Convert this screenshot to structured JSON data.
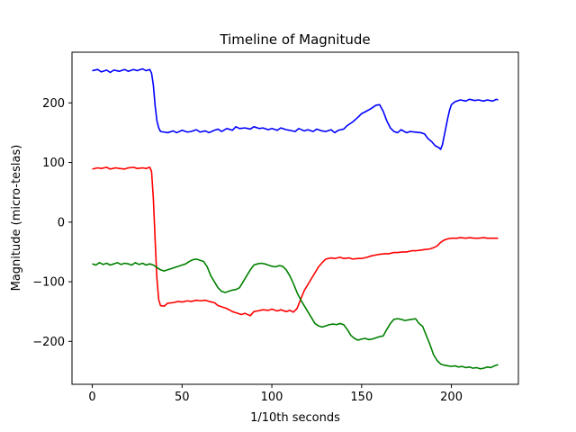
{
  "chart_data": {
    "type": "line",
    "title": "Timeline of Magnitude",
    "xlabel": "1/10th seconds",
    "ylabel": "Magnitude (micro-teslas)",
    "xlim": [
      -11.3,
      237.3
    ],
    "ylim": [
      -272,
      285
    ],
    "xticks": [
      0,
      50,
      100,
      150,
      200
    ],
    "yticks": [
      -200,
      -100,
      0,
      100,
      200
    ],
    "grid": false,
    "colors": {
      "blue": "#0000ff",
      "red": "#ff0000",
      "green": "#008000"
    },
    "series": [
      {
        "color": "#0000ff",
        "points": [
          [
            0,
            254
          ],
          [
            3,
            256
          ],
          [
            5,
            252
          ],
          [
            8,
            255
          ],
          [
            10,
            251
          ],
          [
            12,
            255
          ],
          [
            15,
            253
          ],
          [
            18,
            256
          ],
          [
            20,
            253
          ],
          [
            23,
            256
          ],
          [
            25,
            254
          ],
          [
            28,
            257
          ],
          [
            30,
            254
          ],
          [
            32,
            256
          ],
          [
            33,
            250
          ],
          [
            34,
            230
          ],
          [
            35,
            195
          ],
          [
            36,
            170
          ],
          [
            37,
            158
          ],
          [
            38,
            152
          ],
          [
            40,
            151
          ],
          [
            42,
            150
          ],
          [
            45,
            153
          ],
          [
            47,
            150
          ],
          [
            50,
            154
          ],
          [
            53,
            151
          ],
          [
            55,
            152
          ],
          [
            58,
            155
          ],
          [
            60,
            151
          ],
          [
            63,
            153
          ],
          [
            65,
            150
          ],
          [
            68,
            154
          ],
          [
            70,
            156
          ],
          [
            72,
            152
          ],
          [
            75,
            157
          ],
          [
            78,
            154
          ],
          [
            80,
            160
          ],
          [
            82,
            157
          ],
          [
            85,
            158
          ],
          [
            88,
            156
          ],
          [
            90,
            160
          ],
          [
            93,
            157
          ],
          [
            95,
            158
          ],
          [
            98,
            155
          ],
          [
            100,
            157
          ],
          [
            103,
            154
          ],
          [
            105,
            158
          ],
          [
            108,
            155
          ],
          [
            110,
            154
          ],
          [
            113,
            152
          ],
          [
            115,
            157
          ],
          [
            118,
            153
          ],
          [
            120,
            155
          ],
          [
            123,
            152
          ],
          [
            125,
            156
          ],
          [
            128,
            153
          ],
          [
            130,
            152
          ],
          [
            133,
            155
          ],
          [
            135,
            150
          ],
          [
            137,
            154
          ],
          [
            140,
            156
          ],
          [
            142,
            162
          ],
          [
            145,
            168
          ],
          [
            148,
            176
          ],
          [
            150,
            182
          ],
          [
            152,
            185
          ],
          [
            155,
            190
          ],
          [
            158,
            196
          ],
          [
            160,
            197
          ],
          [
            162,
            186
          ],
          [
            164,
            170
          ],
          [
            166,
            158
          ],
          [
            168,
            152
          ],
          [
            170,
            150
          ],
          [
            172,
            155
          ],
          [
            175,
            150
          ],
          [
            177,
            152
          ],
          [
            180,
            151
          ],
          [
            183,
            150
          ],
          [
            185,
            148
          ],
          [
            187,
            140
          ],
          [
            189,
            135
          ],
          [
            191,
            128
          ],
          [
            193,
            125
          ],
          [
            194,
            122
          ],
          [
            195,
            130
          ],
          [
            196,
            145
          ],
          [
            197,
            160
          ],
          [
            198,
            175
          ],
          [
            199,
            188
          ],
          [
            200,
            197
          ],
          [
            202,
            202
          ],
          [
            205,
            205
          ],
          [
            208,
            203
          ],
          [
            210,
            206
          ],
          [
            213,
            204
          ],
          [
            215,
            205
          ],
          [
            218,
            203
          ],
          [
            220,
            205
          ],
          [
            223,
            203
          ],
          [
            225,
            206
          ],
          [
            226,
            205
          ]
        ]
      },
      {
        "color": "#ff0000",
        "points": [
          [
            0,
            89
          ],
          [
            3,
            91
          ],
          [
            5,
            90
          ],
          [
            8,
            92
          ],
          [
            10,
            89
          ],
          [
            13,
            91
          ],
          [
            15,
            90
          ],
          [
            18,
            89
          ],
          [
            20,
            91
          ],
          [
            23,
            92
          ],
          [
            25,
            90
          ],
          [
            28,
            91
          ],
          [
            30,
            90
          ],
          [
            32,
            92
          ],
          [
            33,
            85
          ],
          [
            34,
            40
          ],
          [
            35,
            -30
          ],
          [
            36,
            -95
          ],
          [
            37,
            -130
          ],
          [
            38,
            -140
          ],
          [
            40,
            -141
          ],
          [
            42,
            -136
          ],
          [
            45,
            -135
          ],
          [
            48,
            -133
          ],
          [
            50,
            -134
          ],
          [
            53,
            -132
          ],
          [
            55,
            -133
          ],
          [
            58,
            -131
          ],
          [
            60,
            -132
          ],
          [
            63,
            -131
          ],
          [
            65,
            -133
          ],
          [
            68,
            -135
          ],
          [
            70,
            -140
          ],
          [
            72,
            -142
          ],
          [
            75,
            -145
          ],
          [
            78,
            -150
          ],
          [
            80,
            -152
          ],
          [
            83,
            -155
          ],
          [
            85,
            -153
          ],
          [
            88,
            -157
          ],
          [
            90,
            -150
          ],
          [
            92,
            -149
          ],
          [
            95,
            -147
          ],
          [
            98,
            -148
          ],
          [
            100,
            -146
          ],
          [
            103,
            -149
          ],
          [
            105,
            -147
          ],
          [
            108,
            -150
          ],
          [
            110,
            -148
          ],
          [
            112,
            -151
          ],
          [
            114,
            -145
          ],
          [
            116,
            -130
          ],
          [
            118,
            -115
          ],
          [
            120,
            -105
          ],
          [
            122,
            -95
          ],
          [
            124,
            -85
          ],
          [
            126,
            -75
          ],
          [
            128,
            -68
          ],
          [
            130,
            -62
          ],
          [
            133,
            -60
          ],
          [
            135,
            -61
          ],
          [
            138,
            -59
          ],
          [
            140,
            -61
          ],
          [
            143,
            -60
          ],
          [
            145,
            -62
          ],
          [
            148,
            -61
          ],
          [
            150,
            -61
          ],
          [
            153,
            -59
          ],
          [
            155,
            -57
          ],
          [
            158,
            -55
          ],
          [
            160,
            -54
          ],
          [
            163,
            -53
          ],
          [
            165,
            -53
          ],
          [
            168,
            -51
          ],
          [
            170,
            -51
          ],
          [
            173,
            -50
          ],
          [
            175,
            -50
          ],
          [
            178,
            -48
          ],
          [
            180,
            -48
          ],
          [
            183,
            -47
          ],
          [
            185,
            -46
          ],
          [
            188,
            -45
          ],
          [
            190,
            -43
          ],
          [
            192,
            -40
          ],
          [
            194,
            -34
          ],
          [
            196,
            -30
          ],
          [
            198,
            -28
          ],
          [
            200,
            -27
          ],
          [
            203,
            -27
          ],
          [
            205,
            -26
          ],
          [
            208,
            -27
          ],
          [
            210,
            -26
          ],
          [
            213,
            -27
          ],
          [
            215,
            -27
          ],
          [
            218,
            -26
          ],
          [
            220,
            -27
          ],
          [
            223,
            -27
          ],
          [
            226,
            -27
          ]
        ]
      },
      {
        "color": "#008000",
        "points": [
          [
            0,
            -70
          ],
          [
            2,
            -72
          ],
          [
            4,
            -68
          ],
          [
            6,
            -71
          ],
          [
            8,
            -69
          ],
          [
            10,
            -72
          ],
          [
            12,
            -70
          ],
          [
            14,
            -68
          ],
          [
            16,
            -71
          ],
          [
            18,
            -69
          ],
          [
            20,
            -70
          ],
          [
            22,
            -72
          ],
          [
            24,
            -68
          ],
          [
            26,
            -71
          ],
          [
            28,
            -69
          ],
          [
            30,
            -72
          ],
          [
            32,
            -70
          ],
          [
            34,
            -72
          ],
          [
            36,
            -76
          ],
          [
            38,
            -80
          ],
          [
            40,
            -82
          ],
          [
            42,
            -80
          ],
          [
            44,
            -78
          ],
          [
            46,
            -76
          ],
          [
            48,
            -74
          ],
          [
            50,
            -72
          ],
          [
            52,
            -70
          ],
          [
            54,
            -66
          ],
          [
            56,
            -63
          ],
          [
            58,
            -62
          ],
          [
            60,
            -64
          ],
          [
            62,
            -66
          ],
          [
            64,
            -75
          ],
          [
            66,
            -90
          ],
          [
            68,
            -100
          ],
          [
            70,
            -110
          ],
          [
            72,
            -116
          ],
          [
            74,
            -118
          ],
          [
            76,
            -116
          ],
          [
            78,
            -114
          ],
          [
            80,
            -113
          ],
          [
            82,
            -110
          ],
          [
            84,
            -100
          ],
          [
            86,
            -90
          ],
          [
            88,
            -80
          ],
          [
            90,
            -72
          ],
          [
            92,
            -70
          ],
          [
            94,
            -69
          ],
          [
            96,
            -70
          ],
          [
            98,
            -72
          ],
          [
            100,
            -74
          ],
          [
            102,
            -75
          ],
          [
            104,
            -73
          ],
          [
            106,
            -74
          ],
          [
            108,
            -80
          ],
          [
            110,
            -90
          ],
          [
            112,
            -103
          ],
          [
            114,
            -118
          ],
          [
            116,
            -130
          ],
          [
            118,
            -140
          ],
          [
            120,
            -150
          ],
          [
            122,
            -160
          ],
          [
            124,
            -170
          ],
          [
            126,
            -174
          ],
          [
            128,
            -176
          ],
          [
            130,
            -174
          ],
          [
            132,
            -172
          ],
          [
            134,
            -171
          ],
          [
            136,
            -172
          ],
          [
            138,
            -170
          ],
          [
            140,
            -172
          ],
          [
            142,
            -180
          ],
          [
            144,
            -190
          ],
          [
            146,
            -195
          ],
          [
            148,
            -198
          ],
          [
            150,
            -196
          ],
          [
            152,
            -195
          ],
          [
            154,
            -197
          ],
          [
            156,
            -196
          ],
          [
            158,
            -194
          ],
          [
            160,
            -192
          ],
          [
            162,
            -191
          ],
          [
            164,
            -180
          ],
          [
            166,
            -170
          ],
          [
            168,
            -163
          ],
          [
            170,
            -162
          ],
          [
            172,
            -163
          ],
          [
            174,
            -165
          ],
          [
            176,
            -164
          ],
          [
            178,
            -163
          ],
          [
            180,
            -162
          ],
          [
            182,
            -170
          ],
          [
            184,
            -175
          ],
          [
            186,
            -190
          ],
          [
            188,
            -205
          ],
          [
            190,
            -222
          ],
          [
            192,
            -232
          ],
          [
            194,
            -238
          ],
          [
            196,
            -240
          ],
          [
            198,
            -241
          ],
          [
            200,
            -242
          ],
          [
            202,
            -241
          ],
          [
            204,
            -243
          ],
          [
            206,
            -242
          ],
          [
            208,
            -244
          ],
          [
            210,
            -243
          ],
          [
            212,
            -245
          ],
          [
            214,
            -244
          ],
          [
            216,
            -246
          ],
          [
            218,
            -245
          ],
          [
            220,
            -243
          ],
          [
            222,
            -244
          ],
          [
            224,
            -241
          ],
          [
            226,
            -239
          ]
        ]
      }
    ]
  }
}
